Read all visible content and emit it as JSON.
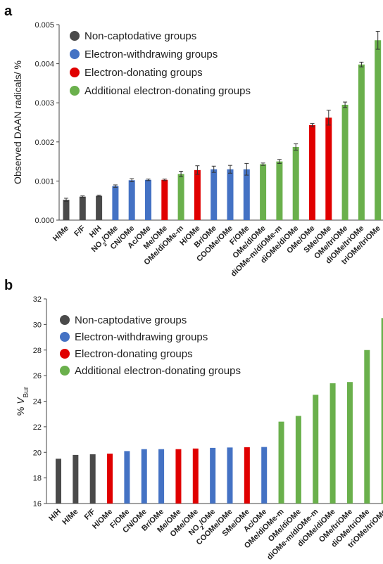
{
  "chart_data": [
    {
      "panel": "a",
      "type": "bar",
      "ylabel": "Observed DAAN radicals/ %",
      "ylim": [
        0,
        0.005
      ],
      "yticks": [
        "0.000",
        "0.001",
        "0.002",
        "0.003",
        "0.004",
        "0.005"
      ],
      "grid": false,
      "legend_placement": "top-left",
      "legend": [
        {
          "name": "Non-captodative groups",
          "color": "#4a4a4a"
        },
        {
          "name": "Electron-withdrawing groups",
          "color": "#4472c4"
        },
        {
          "name": "Electron-donating groups",
          "color": "#e00000"
        },
        {
          "name": "Additional electron-donating groups",
          "color": "#6ab04c"
        }
      ],
      "categories": [
        "H/Me",
        "F/F",
        "H/H",
        "NO2/OMe",
        "CN/OMe",
        "Ac/OMe",
        "Me/OMe",
        "OMe/diOMe-m",
        "H/OMe",
        "Br/OMe",
        "COOMe/OMe",
        "F/OMe",
        "OMe/diOMe",
        "diOMe-m/diOMe-m",
        "diOMe/diOMe",
        "OMe/OMe",
        "SMe/OMe",
        "OMe/triOMe",
        "diOMe/triOMe",
        "triOMe/triOMe"
      ],
      "groups": [
        0,
        0,
        0,
        1,
        1,
        1,
        2,
        3,
        2,
        1,
        1,
        1,
        3,
        3,
        3,
        2,
        2,
        3,
        3,
        3
      ],
      "values": [
        0.00052,
        0.0006,
        0.00062,
        0.00087,
        0.00102,
        0.00103,
        0.00103,
        0.00118,
        0.00128,
        0.0013,
        0.0013,
        0.0013,
        0.00143,
        0.0015,
        0.00187,
        0.00243,
        0.00262,
        0.00295,
        0.00398,
        0.0046
      ],
      "errors": [
        4e-05,
        2e-05,
        2e-05,
        3e-05,
        4e-05,
        2e-05,
        2e-05,
        7e-05,
        0.00011,
        8e-05,
        0.0001,
        0.00015,
        3e-05,
        5e-05,
        8e-05,
        4e-05,
        0.00019,
        7e-05,
        6e-05,
        0.00023
      ]
    },
    {
      "panel": "b",
      "type": "bar",
      "ylabel": "% V",
      "ylabel_sub": "Bur",
      "ylim": [
        16,
        32
      ],
      "yticks": [
        "16",
        "18",
        "20",
        "22",
        "24",
        "26",
        "28",
        "30",
        "32"
      ],
      "grid": false,
      "legend_placement": "top-left",
      "legend": [
        {
          "name": "Non-captodative groups",
          "color": "#4a4a4a"
        },
        {
          "name": "Electron-withdrawing groups",
          "color": "#4472c4"
        },
        {
          "name": "Electron-donating groups",
          "color": "#e00000"
        },
        {
          "name": "Additional electron-donating groups",
          "color": "#6ab04c"
        }
      ],
      "categories": [
        "H/H",
        "H/Me",
        "F/F",
        "H/OMe",
        "F/OMe",
        "CN/OMe",
        "Br/OMe",
        "Me/OMe",
        "OMe/OMe",
        "NO2/OMe",
        "COOMe/OMe",
        "SMe/OMe",
        "Ac/OMe",
        "OMe/diOMe-m",
        "OMe/diOMe",
        "diOMe-m/diOMe-m",
        "diOMe/diOMe",
        "OMe/triOMe",
        "diOMe/triOMe",
        "triOMe/triOMe"
      ],
      "groups": [
        0,
        0,
        0,
        2,
        1,
        1,
        1,
        2,
        2,
        1,
        1,
        2,
        1,
        3,
        3,
        3,
        3,
        3,
        3,
        3
      ],
      "values": [
        19.5,
        19.8,
        19.85,
        19.9,
        20.1,
        20.25,
        20.25,
        20.25,
        20.3,
        20.35,
        20.38,
        20.4,
        20.42,
        22.4,
        22.85,
        24.5,
        25.4,
        25.5,
        28.0,
        30.5
      ]
    }
  ]
}
